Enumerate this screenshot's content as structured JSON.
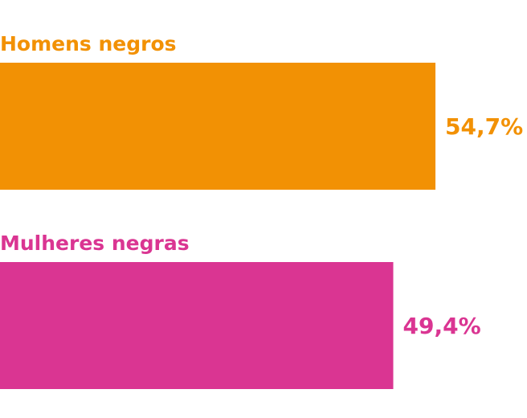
{
  "chart_data": {
    "type": "bar",
    "orientation": "horizontal",
    "categories": [
      "Homens negros",
      "Mulheres negras"
    ],
    "values": [
      54.7,
      49.4
    ],
    "value_labels": [
      "54,7%",
      "49,4%"
    ],
    "colors": [
      "#f29104",
      "#da3592"
    ],
    "unit": "%",
    "xlim": [
      0,
      66.2
    ],
    "grid": false,
    "legend": "none"
  }
}
